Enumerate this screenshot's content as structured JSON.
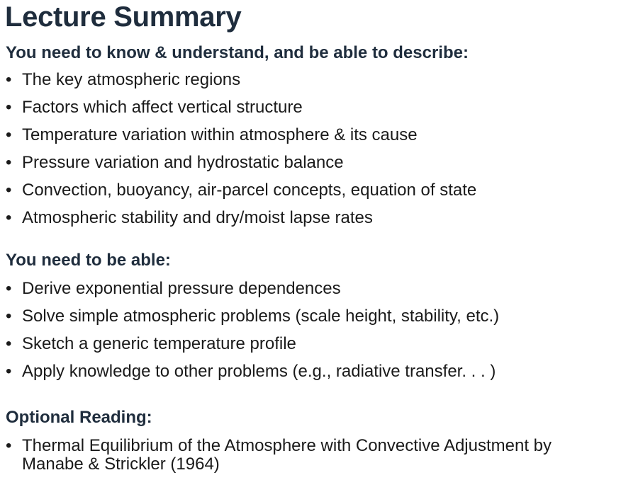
{
  "title": "Lecture Summary",
  "sections": [
    {
      "heading": "You need to know & understand, and be able to describe:",
      "items": [
        "The key atmospheric regions",
        "Factors which affect vertical structure",
        "Temperature variation within atmosphere & its cause",
        "Pressure variation and hydrostatic balance",
        "Convection, buoyancy, air-parcel concepts, equation of state",
        "Atmospheric stability and dry/moist lapse rates"
      ]
    },
    {
      "heading": "You need to be able:",
      "items": [
        "Derive exponential pressure dependences",
        "Solve simple atmospheric problems (scale height, stability, etc.)",
        "Sketch a generic temperature profile",
        "Apply knowledge to other problems (e.g., radiative transfer. . . )"
      ]
    },
    {
      "heading": "Optional Reading:",
      "items": [
        "Thermal Equilibrium of the Atmosphere with Convective Adjustment by Manabe & Strickler (1964)"
      ]
    }
  ],
  "bullet_symbol": "•",
  "colors": {
    "heading": "#1f2d3d",
    "text": "#1a1a1a",
    "background": "#ffffff"
  }
}
